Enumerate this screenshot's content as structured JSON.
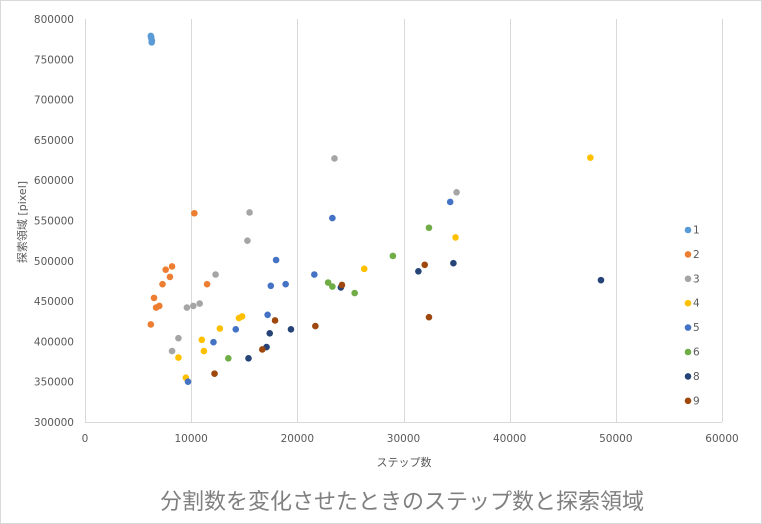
{
  "chart_data": {
    "type": "scatter",
    "title": "",
    "xlabel": "ステップ数",
    "ylabel": "探索領域 [pixel]",
    "xlim": [
      0,
      60000
    ],
    "ylim": [
      300000,
      800000
    ],
    "xticks": [
      "0",
      "10000",
      "20000",
      "30000",
      "40000",
      "50000",
      "60000"
    ],
    "yticks": [
      "300000",
      "350000",
      "400000",
      "450000",
      "500000",
      "550000",
      "600000",
      "650000",
      "700000",
      "750000",
      "800000"
    ],
    "grid": "vertical",
    "legend_position": "right",
    "series": [
      {
        "name": "1",
        "color": "#5B9BD5",
        "points": [
          [
            6200,
            779000
          ],
          [
            6250,
            776000
          ],
          [
            6300,
            773000
          ],
          [
            6280,
            771000
          ],
          [
            6220,
            778000
          ]
        ]
      },
      {
        "name": "2",
        "color": "#ED7D31",
        "points": [
          [
            6200,
            421000
          ],
          [
            6500,
            454000
          ],
          [
            6700,
            442000
          ],
          [
            7000,
            444000
          ],
          [
            7300,
            471000
          ],
          [
            7600,
            489000
          ],
          [
            8000,
            480000
          ],
          [
            8200,
            493000
          ],
          [
            10300,
            559000
          ],
          [
            11500,
            471000
          ]
        ]
      },
      {
        "name": "3",
        "color": "#A5A5A5",
        "points": [
          [
            8200,
            388000
          ],
          [
            8800,
            404000
          ],
          [
            9600,
            442000
          ],
          [
            10200,
            444000
          ],
          [
            10800,
            447000
          ],
          [
            12300,
            483000
          ],
          [
            15300,
            525000
          ],
          [
            15500,
            560000
          ],
          [
            23500,
            627000
          ],
          [
            35000,
            585000
          ]
        ]
      },
      {
        "name": "4",
        "color": "#FFC000",
        "points": [
          [
            8800,
            380000
          ],
          [
            9500,
            355000
          ],
          [
            11000,
            402000
          ],
          [
            11200,
            388000
          ],
          [
            12700,
            416000
          ],
          [
            14500,
            429000
          ],
          [
            14800,
            431000
          ],
          [
            26300,
            490000
          ],
          [
            34900,
            529000
          ],
          [
            47600,
            628000
          ]
        ]
      },
      {
        "name": "5",
        "color": "#4472C4",
        "points": [
          [
            9700,
            350000
          ],
          [
            12100,
            399000
          ],
          [
            14200,
            415000
          ],
          [
            17200,
            433000
          ],
          [
            17500,
            469000
          ],
          [
            18000,
            501000
          ],
          [
            18900,
            471000
          ],
          [
            21600,
            483000
          ],
          [
            23300,
            553000
          ],
          [
            34400,
            573000
          ]
        ]
      },
      {
        "name": "6",
        "color": "#70AD47",
        "points": [
          [
            13500,
            379000
          ],
          [
            22900,
            473000
          ],
          [
            23300,
            468000
          ],
          [
            25400,
            460000
          ],
          [
            29000,
            506000
          ],
          [
            32400,
            541000
          ]
        ]
      },
      {
        "name": "8",
        "color": "#264478",
        "points": [
          [
            15400,
            379000
          ],
          [
            17100,
            393000
          ],
          [
            17400,
            410000
          ],
          [
            19400,
            415000
          ],
          [
            24100,
            467000
          ],
          [
            31400,
            487000
          ],
          [
            34700,
            497000
          ],
          [
            48600,
            476000
          ]
        ]
      },
      {
        "name": "9",
        "color": "#9E480E",
        "points": [
          [
            12200,
            360000
          ],
          [
            16700,
            390000
          ],
          [
            17900,
            426000
          ],
          [
            21700,
            419000
          ],
          [
            24200,
            470000
          ],
          [
            32000,
            495000
          ],
          [
            32400,
            430000
          ]
        ]
      }
    ],
    "caption": "分割数を変化させたときのステップ数と探索領域"
  }
}
